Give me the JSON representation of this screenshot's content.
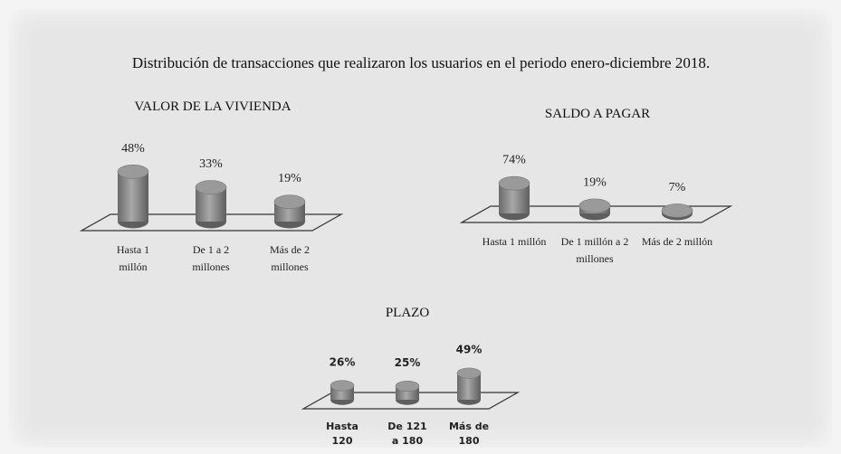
{
  "title": "Distribución de transacciones que realizaron los usuarios en el periodo enero-diciembre 2018.",
  "chart_data": [
    {
      "type": "bar",
      "title": "VALOR DE LA VIVIENDA",
      "categories": [
        "Hasta 1 millón",
        "De 1 a 2 millones",
        "Más de 2 millones"
      ],
      "values": [
        48,
        33,
        19
      ],
      "value_labels": [
        "48%",
        "33%",
        "19%"
      ],
      "color": "#858585"
    },
    {
      "type": "bar",
      "title": "SALDO A PAGAR",
      "categories": [
        "Hasta 1 millón",
        "De 1 millón a 2 millones",
        "Más de 2 millón"
      ],
      "values": [
        74,
        19,
        7
      ],
      "value_labels": [
        "74%",
        "19%",
        "7%"
      ],
      "color": "#858585"
    },
    {
      "type": "bar",
      "title": "PLAZO",
      "categories": [
        "Hasta 120",
        "De 121 a 180",
        "Más de 180"
      ],
      "values": [
        26,
        25,
        49
      ],
      "value_labels": [
        "26%",
        "25%",
        "49%"
      ],
      "color": "#858585"
    }
  ]
}
